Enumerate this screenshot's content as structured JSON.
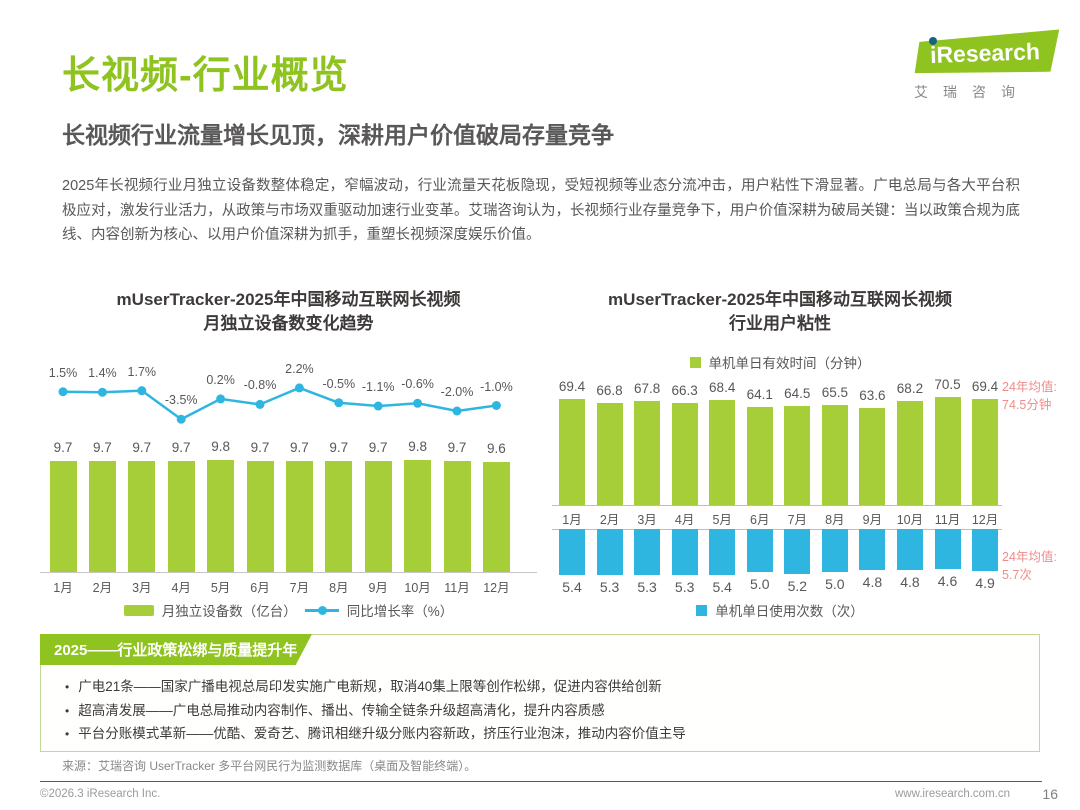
{
  "header": {
    "title": "长视频-行业概览",
    "subtitle": "长视频行业流量增长见顶，深耕用户价值破局存量竞争",
    "logo": {
      "brand": "iResearch",
      "brand_cn": "艾瑞咨询"
    }
  },
  "intro": "2025年长视频行业月独立设备数整体稳定，窄幅波动，行业流量天花板隐现，受短视频等业态分流冲击，用户粘性下滑显著。广电总局与各大平台积极应对，激发行业活力，从政策与市场双重驱动加速行业变革。艾瑞咨询认为，长视频行业存量竞争下，用户价值深耕为破局关键：当以政策合规为底线、内容创新为核心、以用户价值深耕为抓手，重塑长视频深度娱乐价值。",
  "colors": {
    "brand_green": "#8fc31f",
    "bar_green": "#a5ce39",
    "line_blue": "#2fb6e0",
    "annotation_red": "#f08c8c",
    "text_dark": "#595757"
  },
  "chart_data": [
    {
      "type": "bar+line",
      "title": "mUserTracker-2025年中国移动互联网长视频月独立设备数变化趋势",
      "title_lines": [
        "mUserTracker-2025年中国移动互联网长视频",
        "月独立设备数变化趋势"
      ],
      "categories": [
        "1月",
        "2月",
        "3月",
        "4月",
        "5月",
        "6月",
        "7月",
        "8月",
        "9月",
        "10月",
        "11月",
        "12月"
      ],
      "ylim_bar": [
        0,
        10
      ],
      "ylim_line": [
        -4,
        3
      ],
      "grid": false,
      "legend_position": "bottom",
      "series": [
        {
          "name": "月独立设备数（亿台）",
          "type": "bar",
          "color": "#a5ce39",
          "values": [
            9.7,
            9.7,
            9.7,
            9.7,
            9.8,
            9.7,
            9.7,
            9.7,
            9.7,
            9.8,
            9.7,
            9.6
          ],
          "labels": [
            "9.7",
            "9.7",
            "9.7",
            "9.7",
            "9.8",
            "9.7",
            "9.7",
            "9.7",
            "9.7",
            "9.8",
            "9.7",
            "9.6"
          ]
        },
        {
          "name": "同比增长率（%）",
          "type": "line",
          "color": "#2fb6e0",
          "values": [
            1.5,
            1.4,
            1.7,
            -3.5,
            0.2,
            -0.8,
            2.2,
            -0.5,
            -1.1,
            -0.6,
            -2.0,
            -1.0
          ],
          "labels": [
            "1.5%",
            "1.4%",
            "1.7%",
            "-3.5%",
            "0.2%",
            "-0.8%",
            "2.2%",
            "-0.5%",
            "-1.1%",
            "-0.6%",
            "-2.0%",
            "-1.0%"
          ]
        }
      ]
    },
    {
      "type": "bar",
      "title": "mUserTracker-2025年中国移动互联网长视频行业用户粘性",
      "title_lines": [
        "mUserTracker-2025年中国移动互联网长视频",
        "行业用户粘性"
      ],
      "categories": [
        "1月",
        "2月",
        "3月",
        "4月",
        "5月",
        "6月",
        "7月",
        "8月",
        "9月",
        "10月",
        "11月",
        "12月"
      ],
      "grid": false,
      "series": [
        {
          "name": "单机单日有效时间（分钟）",
          "type": "bar",
          "direction": "up",
          "color": "#a5ce39",
          "values": [
            69.4,
            66.8,
            67.8,
            66.3,
            68.4,
            64.1,
            64.5,
            65.5,
            63.6,
            68.2,
            70.5,
            69.4
          ],
          "labels": [
            "69.4",
            "66.8",
            "67.8",
            "66.3",
            "68.4",
            "64.1",
            "64.5",
            "65.5",
            "63.6",
            "68.2",
            "70.5",
            "69.4"
          ],
          "annotation": "24年均值: 74.5分钟",
          "annotation_lines": [
            "24年均值:",
            "74.5分钟"
          ]
        },
        {
          "name": "单机单日使用次数（次）",
          "type": "bar",
          "direction": "down",
          "color": "#2fb6e0",
          "values": [
            5.4,
            5.3,
            5.3,
            5.3,
            5.4,
            5.0,
            5.2,
            5.0,
            4.8,
            4.8,
            4.6,
            4.9
          ],
          "labels": [
            "5.4",
            "5.3",
            "5.3",
            "5.3",
            "5.4",
            "5.0",
            "5.2",
            "5.0",
            "4.8",
            "4.8",
            "4.6",
            "4.9"
          ],
          "annotation": "24年均值: 5.7次",
          "annotation_lines": [
            "24年均值:",
            "5.7次"
          ]
        }
      ]
    }
  ],
  "highlight_box": {
    "banner": "2025——行业政策松绑与质量提升年",
    "bullets": [
      "广电21条——国家广播电视总局印发实施广电新规，取消40集上限等创作松绑，促进内容供给创新",
      "超高清发展——广电总局推动内容制作、播出、传输全链条升级超高清化，提升内容质感",
      "平台分账模式革新——优酷、爱奇艺、腾讯相继升级分账内容新政，挤压行业泡沫，推动内容价值主导"
    ]
  },
  "footer": {
    "source": "来源：艾瑞咨询 UserTracker 多平台网民行为监测数据库（桌面及智能终端）。",
    "copyright": "©2026.3 iResearch Inc.",
    "website": "www.iresearch.com.cn",
    "page": "16"
  }
}
